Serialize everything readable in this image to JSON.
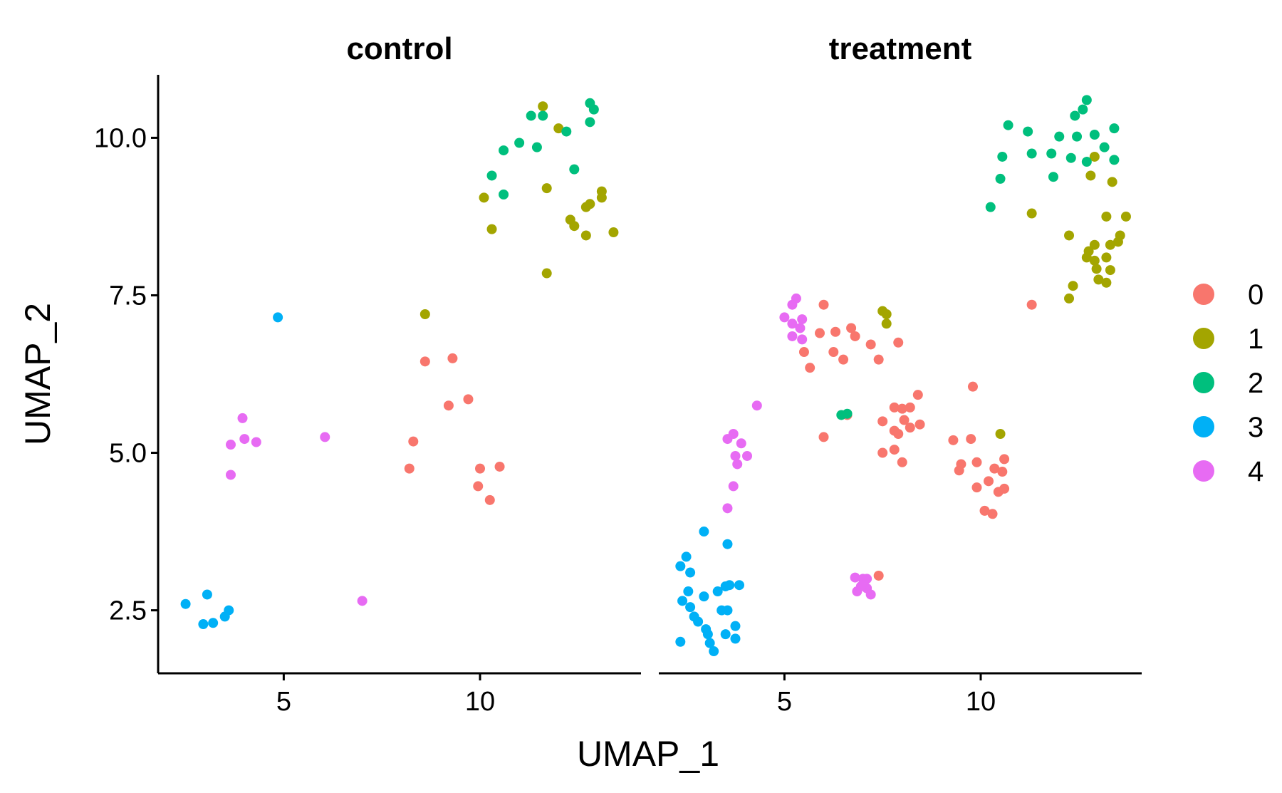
{
  "chart_data": {
    "type": "scatter",
    "xlabel": "UMAP_1",
    "ylabel": "UMAP_2",
    "xlim": [
      1.8,
      14.1
    ],
    "ylim": [
      1.5,
      11.0
    ],
    "x_ticks": [
      5,
      10
    ],
    "x_tick_labels": [
      "5",
      "10"
    ],
    "y_ticks": [
      2.5,
      5.0,
      7.5,
      10.0
    ],
    "y_tick_labels": [
      "2.5",
      "5.0",
      "7.5",
      "10.0"
    ],
    "grid": false,
    "legend_position": "right",
    "legend": [
      {
        "label": "0",
        "color": "#F8766D"
      },
      {
        "label": "1",
        "color": "#A3A500"
      },
      {
        "label": "2",
        "color": "#00BF7D"
      },
      {
        "label": "3",
        "color": "#00B0F6"
      },
      {
        "label": "4",
        "color": "#E76BF3"
      }
    ],
    "panels": [
      {
        "title": "control",
        "series": [
          {
            "name": "0",
            "points": [
              [
                8.6,
                6.45
              ],
              [
                9.3,
                6.5
              ],
              [
                9.7,
                5.85
              ],
              [
                9.2,
                5.75
              ],
              [
                8.3,
                5.18
              ],
              [
                8.2,
                4.75
              ],
              [
                10.0,
                4.75
              ],
              [
                10.5,
                4.78
              ],
              [
                9.95,
                4.47
              ],
              [
                10.25,
                4.25
              ]
            ]
          },
          {
            "name": "1",
            "points": [
              [
                11.6,
                10.5
              ],
              [
                12.0,
                10.15
              ],
              [
                10.1,
                9.05
              ],
              [
                11.7,
                9.2
              ],
              [
                13.1,
                9.15
              ],
              [
                13.1,
                9.05
              ],
              [
                12.8,
                8.95
              ],
              [
                12.7,
                8.9
              ],
              [
                10.3,
                8.55
              ],
              [
                12.3,
                8.7
              ],
              [
                12.4,
                8.6
              ],
              [
                12.7,
                8.45
              ],
              [
                13.4,
                8.5
              ],
              [
                11.7,
                7.85
              ],
              [
                8.6,
                7.2
              ]
            ]
          },
          {
            "name": "2",
            "points": [
              [
                12.8,
                10.55
              ],
              [
                12.9,
                10.45
              ],
              [
                11.3,
                10.35
              ],
              [
                11.6,
                10.35
              ],
              [
                12.8,
                10.25
              ],
              [
                12.2,
                10.1
              ],
              [
                11.0,
                9.92
              ],
              [
                11.45,
                9.85
              ],
              [
                10.6,
                9.8
              ],
              [
                10.3,
                9.4
              ],
              [
                12.4,
                9.5
              ],
              [
                10.6,
                9.1
              ]
            ]
          },
          {
            "name": "3",
            "points": [
              [
                4.85,
                7.15
              ],
              [
                2.5,
                2.6
              ],
              [
                3.05,
                2.75
              ],
              [
                3.6,
                2.5
              ],
              [
                3.5,
                2.4
              ],
              [
                3.2,
                2.3
              ],
              [
                2.95,
                2.28
              ]
            ]
          },
          {
            "name": "4",
            "points": [
              [
                3.95,
                5.55
              ],
              [
                4.0,
                5.22
              ],
              [
                4.3,
                5.17
              ],
              [
                3.65,
                5.13
              ],
              [
                3.65,
                4.65
              ],
              [
                6.05,
                5.25
              ],
              [
                7.0,
                2.65
              ]
            ]
          }
        ]
      },
      {
        "title": "treatment",
        "series": [
          {
            "name": "0",
            "points": [
              [
                6.0,
                7.35
              ],
              [
                5.9,
                6.9
              ],
              [
                6.3,
                6.92
              ],
              [
                6.7,
                6.98
              ],
              [
                6.8,
                6.85
              ],
              [
                7.2,
                6.72
              ],
              [
                6.5,
                6.48
              ],
              [
                7.4,
                6.48
              ],
              [
                7.9,
                6.75
              ],
              [
                5.5,
                6.6
              ],
              [
                5.65,
                6.35
              ],
              [
                6.25,
                6.6
              ],
              [
                9.8,
                6.05
              ],
              [
                7.8,
                5.72
              ],
              [
                8.0,
                5.7
              ],
              [
                8.2,
                5.72
              ],
              [
                8.4,
                5.92
              ],
              [
                7.5,
                5.5
              ],
              [
                8.05,
                5.52
              ],
              [
                8.2,
                5.4
              ],
              [
                8.45,
                5.45
              ],
              [
                7.8,
                5.35
              ],
              [
                7.9,
                5.3
              ],
              [
                6.6,
                5.6
              ],
              [
                7.5,
                5.0
              ],
              [
                7.8,
                5.05
              ],
              [
                8.0,
                4.85
              ],
              [
                9.3,
                5.2
              ],
              [
                9.75,
                5.22
              ],
              [
                9.5,
                4.82
              ],
              [
                9.9,
                4.85
              ],
              [
                10.6,
                4.9
              ],
              [
                9.45,
                4.72
              ],
              [
                10.35,
                4.75
              ],
              [
                10.55,
                4.7
              ],
              [
                10.2,
                4.55
              ],
              [
                9.9,
                4.45
              ],
              [
                10.6,
                4.43
              ],
              [
                10.45,
                4.38
              ],
              [
                10.1,
                4.08
              ],
              [
                10.3,
                4.03
              ],
              [
                6.0,
                5.25
              ],
              [
                7.4,
                3.05
              ],
              [
                11.3,
                7.35
              ]
            ]
          },
          {
            "name": "1",
            "points": [
              [
                12.9,
                9.7
              ],
              [
                12.8,
                9.4
              ],
              [
                13.35,
                9.3
              ],
              [
                11.3,
                8.8
              ],
              [
                13.2,
                8.75
              ],
              [
                13.7,
                8.75
              ],
              [
                12.25,
                8.45
              ],
              [
                13.55,
                8.45
              ],
              [
                13.5,
                8.35
              ],
              [
                12.9,
                8.3
              ],
              [
                12.75,
                8.2
              ],
              [
                13.3,
                8.3
              ],
              [
                12.7,
                8.1
              ],
              [
                12.9,
                8.05
              ],
              [
                13.2,
                8.1
              ],
              [
                12.95,
                7.92
              ],
              [
                13.3,
                7.9
              ],
              [
                13.0,
                7.75
              ],
              [
                13.2,
                7.7
              ],
              [
                12.35,
                7.65
              ],
              [
                12.25,
                7.45
              ],
              [
                7.5,
                7.25
              ],
              [
                7.6,
                7.2
              ],
              [
                7.6,
                7.05
              ],
              [
                10.5,
                5.3
              ]
            ]
          },
          {
            "name": "2",
            "points": [
              [
                12.7,
                10.6
              ],
              [
                12.6,
                10.45
              ],
              [
                12.4,
                10.35
              ],
              [
                10.7,
                10.2
              ],
              [
                11.2,
                10.1
              ],
              [
                12.9,
                10.05
              ],
              [
                12.0,
                10.02
              ],
              [
                12.45,
                10.02
              ],
              [
                13.4,
                10.15
              ],
              [
                13.15,
                9.85
              ],
              [
                10.55,
                9.7
              ],
              [
                11.3,
                9.75
              ],
              [
                11.8,
                9.75
              ],
              [
                12.3,
                9.68
              ],
              [
                12.7,
                9.62
              ],
              [
                13.4,
                9.65
              ],
              [
                10.5,
                9.35
              ],
              [
                11.85,
                9.38
              ],
              [
                10.25,
                8.9
              ],
              [
                6.45,
                5.6
              ],
              [
                6.6,
                5.62
              ]
            ]
          },
          {
            "name": "3",
            "points": [
              [
                2.95,
                3.75
              ],
              [
                3.55,
                3.55
              ],
              [
                2.5,
                3.35
              ],
              [
                2.35,
                3.2
              ],
              [
                2.6,
                3.1
              ],
              [
                3.6,
                2.9
              ],
              [
                3.85,
                2.9
              ],
              [
                3.3,
                2.8
              ],
              [
                3.5,
                2.88
              ],
              [
                2.55,
                2.8
              ],
              [
                2.95,
                2.72
              ],
              [
                2.4,
                2.65
              ],
              [
                3.4,
                2.5
              ],
              [
                3.55,
                2.5
              ],
              [
                2.7,
                2.4
              ],
              [
                2.8,
                2.32
              ],
              [
                3.0,
                2.2
              ],
              [
                3.05,
                2.12
              ],
              [
                3.75,
                2.25
              ],
              [
                3.5,
                2.12
              ],
              [
                3.75,
                2.05
              ],
              [
                2.35,
                2.0
              ],
              [
                3.1,
                1.98
              ],
              [
                3.2,
                1.85
              ],
              [
                2.6,
                2.55
              ]
            ]
          },
          {
            "name": "4",
            "points": [
              [
                5.3,
                7.45
              ],
              [
                5.2,
                7.35
              ],
              [
                5.0,
                7.15
              ],
              [
                5.45,
                7.12
              ],
              [
                5.2,
                7.05
              ],
              [
                5.4,
                6.98
              ],
              [
                5.2,
                6.85
              ],
              [
                5.45,
                6.8
              ],
              [
                4.3,
                5.75
              ],
              [
                3.7,
                5.3
              ],
              [
                3.55,
                5.22
              ],
              [
                3.9,
                5.15
              ],
              [
                3.75,
                4.95
              ],
              [
                4.05,
                4.95
              ],
              [
                3.8,
                4.82
              ],
              [
                3.7,
                4.47
              ],
              [
                3.55,
                4.12
              ],
              [
                7.0,
                3.0
              ],
              [
                7.1,
                3.0
              ],
              [
                6.8,
                3.02
              ],
              [
                7.1,
                2.85
              ],
              [
                6.95,
                2.88
              ],
              [
                6.85,
                2.8
              ],
              [
                7.2,
                2.75
              ]
            ]
          }
        ]
      }
    ]
  }
}
